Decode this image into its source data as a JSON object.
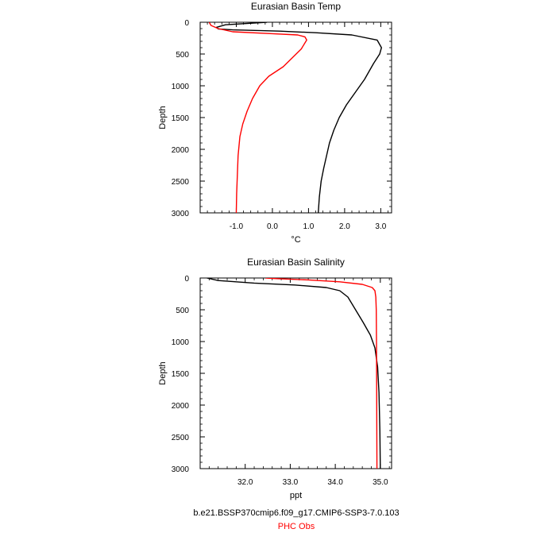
{
  "chart_data": [
    {
      "type": "line",
      "title": "Eurasian Basin Temp",
      "xlabel": "°C",
      "ylabel": "Depth",
      "xlim": [
        -2.0,
        3.3
      ],
      "ylim": [
        3000,
        0
      ],
      "y_reversed": true,
      "xticks": [
        -1.0,
        0.0,
        1.0,
        2.0,
        3.0
      ],
      "xtick_labels": [
        "-1.0",
        "0.0",
        "1.0",
        "2.0",
        "3.0"
      ],
      "yticks": [
        0,
        500,
        1000,
        1500,
        2000,
        2500,
        3000
      ],
      "ytick_labels": [
        "0",
        "500",
        "1000",
        "1500",
        "2000",
        "2500",
        "3000"
      ],
      "grid": false,
      "series": [
        {
          "name": "b.e21.BSSP370cmip6.f09_g17.CMIP6-SSP3-7.0.103",
          "color": "#000000",
          "x": [
            -0.15,
            -1.3,
            -1.55,
            -1.5,
            -1.1,
            0.2,
            1.2,
            2.2,
            2.9,
            3.02,
            2.97,
            2.8,
            2.55,
            2.3,
            2.05,
            1.85,
            1.7,
            1.58,
            1.5,
            1.42,
            1.35,
            1.3,
            1.27
          ],
          "y": [
            0,
            40,
            80,
            105,
            120,
            140,
            165,
            200,
            280,
            400,
            500,
            650,
            900,
            1100,
            1300,
            1500,
            1700,
            1900,
            2100,
            2300,
            2500,
            2750,
            3000
          ]
        },
        {
          "name": "PHC Obs",
          "color": "#ff0000",
          "x": [
            -1.75,
            -1.7,
            -1.5,
            -1.1,
            0.0,
            0.7,
            0.9,
            0.95,
            0.8,
            0.3,
            -0.1,
            -0.35,
            -0.55,
            -0.7,
            -0.82,
            -0.9,
            -0.95,
            -0.97,
            -0.99,
            -1.0
          ],
          "y": [
            0,
            50,
            100,
            150,
            180,
            200,
            230,
            280,
            420,
            700,
            850,
            1000,
            1200,
            1400,
            1600,
            1800,
            2100,
            2400,
            2700,
            3000
          ]
        }
      ]
    },
    {
      "type": "line",
      "title": "Eurasian Basin Salinity",
      "xlabel": "ppt",
      "ylabel": "Depth",
      "xlim": [
        31.0,
        35.25
      ],
      "ylim": [
        3000,
        0
      ],
      "y_reversed": true,
      "xticks": [
        32.0,
        33.0,
        34.0,
        35.0
      ],
      "xtick_labels": [
        "32.0",
        "33.0",
        "34.0",
        "35.0"
      ],
      "yticks": [
        0,
        500,
        1000,
        1500,
        2000,
        2500,
        3000
      ],
      "ytick_labels": [
        "0",
        "500",
        "1000",
        "1500",
        "2000",
        "2500",
        "3000"
      ],
      "grid": false,
      "series": [
        {
          "name": "b.e21.BSSP370cmip6.f09_g17.CMIP6-SSP3-7.0.103",
          "color": "#000000",
          "x": [
            31.15,
            31.4,
            32.2,
            33.1,
            33.8,
            34.1,
            34.28,
            34.45,
            34.62,
            34.78,
            34.88,
            34.94,
            34.97,
            34.99,
            35.0
          ],
          "y": [
            0,
            40,
            80,
            110,
            150,
            200,
            300,
            500,
            700,
            900,
            1100,
            1400,
            1800,
            2400,
            3000
          ]
        },
        {
          "name": "PHC Obs",
          "color": "#ff0000",
          "x": [
            32.45,
            32.7,
            33.4,
            34.1,
            34.6,
            34.82,
            34.88,
            34.9,
            34.91,
            34.915,
            34.92,
            34.925
          ],
          "y": [
            0,
            10,
            30,
            60,
            100,
            150,
            200,
            300,
            500,
            1000,
            2000,
            3000
          ]
        }
      ]
    }
  ],
  "legend": {
    "model_label": "b.e21.BSSP370cmip6.f09_g17.CMIP6-SSP3-7.0.103",
    "model_color": "#000000",
    "obs_label": "PHC Obs",
    "obs_color": "#ff0000"
  }
}
